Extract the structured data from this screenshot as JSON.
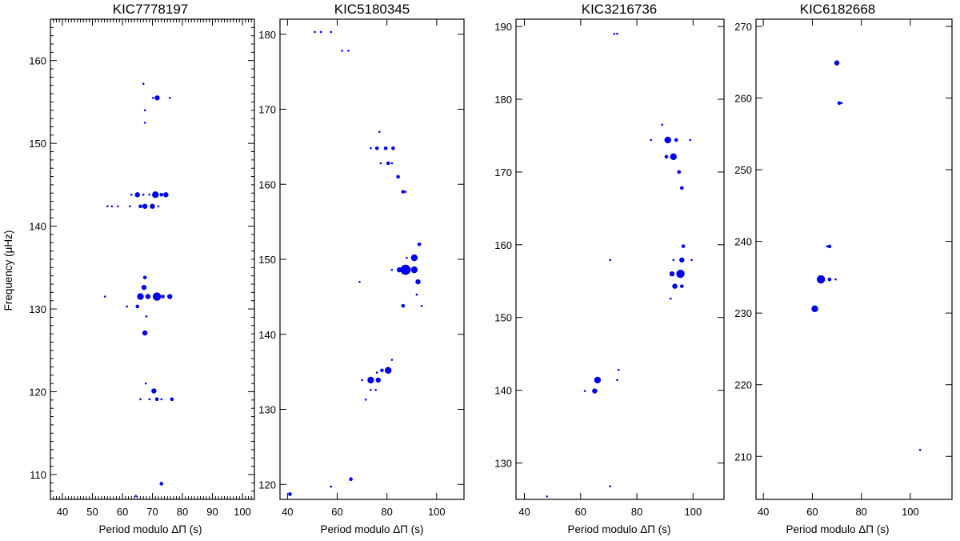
{
  "chart_data": [
    {
      "type": "scatter",
      "title": "KIC7778197",
      "xlabel": "Period modulo ΔΠ (s)",
      "ylabel": "Frequency (μHz)",
      "xlim": [
        36,
        104
      ],
      "ylim": [
        107,
        165
      ],
      "xticks": [
        40,
        50,
        60,
        70,
        80,
        90,
        100
      ],
      "yticks": [
        110,
        120,
        130,
        140,
        150,
        160
      ],
      "points": [
        [
          67.0,
          157.2,
          1
        ],
        [
          71.6,
          155.5,
          3
        ],
        [
          70.2,
          155.5,
          1
        ],
        [
          75.8,
          155.5,
          1
        ],
        [
          67.5,
          154.0,
          1
        ],
        [
          67.5,
          152.5,
          1
        ],
        [
          65.0,
          143.8,
          3
        ],
        [
          63.0,
          143.8,
          1
        ],
        [
          67.0,
          143.8,
          1
        ],
        [
          71.0,
          143.8,
          4
        ],
        [
          73.0,
          143.8,
          2
        ],
        [
          74.5,
          143.8,
          3
        ],
        [
          69.0,
          143.8,
          1
        ],
        [
          55.0,
          142.4,
          1
        ],
        [
          56.5,
          142.4,
          1
        ],
        [
          58.5,
          142.4,
          1
        ],
        [
          62.5,
          142.4,
          1
        ],
        [
          66.0,
          142.4,
          2
        ],
        [
          67.5,
          142.4,
          3
        ],
        [
          70.0,
          142.4,
          3
        ],
        [
          72.0,
          142.4,
          1
        ],
        [
          67.5,
          133.8,
          2
        ],
        [
          67.2,
          132.6,
          3
        ],
        [
          66.0,
          131.5,
          4
        ],
        [
          68.5,
          131.5,
          3
        ],
        [
          71.5,
          131.5,
          5
        ],
        [
          73.5,
          131.5,
          2
        ],
        [
          75.8,
          131.5,
          3
        ],
        [
          54.2,
          131.5,
          1
        ],
        [
          61.5,
          130.3,
          1
        ],
        [
          65.0,
          130.3,
          2
        ],
        [
          68.0,
          129.1,
          1
        ],
        [
          67.5,
          127.1,
          3
        ],
        [
          67.8,
          121.0,
          1
        ],
        [
          70.5,
          120.1,
          3
        ],
        [
          71.5,
          119.1,
          2
        ],
        [
          66.0,
          119.1,
          1
        ],
        [
          69.0,
          119.1,
          1
        ],
        [
          73.0,
          119.1,
          1
        ],
        [
          76.5,
          119.1,
          2
        ],
        [
          73.0,
          108.9,
          2
        ],
        [
          64.5,
          107.4,
          1
        ]
      ]
    },
    {
      "type": "scatter",
      "title": "KIC5180345",
      "xlabel": "Period modulo ΔΠ (s)",
      "ylabel": "",
      "xlim": [
        37,
        111
      ],
      "ylim": [
        118,
        182
      ],
      "xticks": [
        40,
        60,
        80,
        100
      ],
      "yticks": [
        120,
        130,
        140,
        150,
        160,
        170,
        180
      ],
      "points": [
        [
          51.0,
          180.3,
          1
        ],
        [
          53.5,
          180.3,
          1
        ],
        [
          57.5,
          180.3,
          1
        ],
        [
          62.0,
          177.8,
          1
        ],
        [
          64.5,
          177.8,
          1
        ],
        [
          77.0,
          167.0,
          1
        ],
        [
          73.5,
          164.8,
          1
        ],
        [
          76.0,
          164.8,
          2
        ],
        [
          79.5,
          164.8,
          2
        ],
        [
          82.5,
          164.8,
          2
        ],
        [
          77.5,
          162.8,
          1
        ],
        [
          80.5,
          162.8,
          2
        ],
        [
          82.0,
          162.8,
          1
        ],
        [
          84.5,
          161.0,
          2
        ],
        [
          86.5,
          159.0,
          2
        ],
        [
          87.5,
          159.0,
          1
        ],
        [
          93.0,
          152.0,
          2
        ],
        [
          91.0,
          150.2,
          4
        ],
        [
          88.0,
          150.2,
          1
        ],
        [
          82.0,
          148.6,
          1
        ],
        [
          85.0,
          148.6,
          3
        ],
        [
          87.5,
          148.6,
          6
        ],
        [
          91.0,
          148.6,
          4
        ],
        [
          92.5,
          147.0,
          3
        ],
        [
          69.0,
          147.0,
          1
        ],
        [
          92.0,
          145.3,
          1
        ],
        [
          86.5,
          143.8,
          2
        ],
        [
          94.0,
          143.8,
          1
        ],
        [
          82.0,
          136.6,
          1
        ],
        [
          78.0,
          135.2,
          2
        ],
        [
          80.5,
          135.2,
          4
        ],
        [
          76.0,
          134.9,
          1
        ],
        [
          70.0,
          133.9,
          1
        ],
        [
          73.5,
          133.9,
          4
        ],
        [
          76.5,
          133.9,
          3
        ],
        [
          73.5,
          132.6,
          1
        ],
        [
          75.5,
          132.6,
          1
        ],
        [
          71.5,
          131.3,
          1
        ],
        [
          65.5,
          120.7,
          2
        ],
        [
          57.5,
          119.7,
          1
        ],
        [
          41.0,
          118.7,
          2
        ]
      ]
    },
    {
      "type": "scatter",
      "title": "KIC3216736",
      "xlabel": "Period modulo ΔΠ (s)",
      "ylabel": "",
      "xlim": [
        37,
        111
      ],
      "ylim": [
        125,
        191
      ],
      "xticks": [
        40,
        60,
        80,
        100
      ],
      "yticks": [
        130,
        140,
        150,
        160,
        170,
        180,
        190
      ],
      "points": [
        [
          72.0,
          189.0,
          1
        ],
        [
          73.0,
          189.0,
          1
        ],
        [
          89.0,
          176.5,
          1
        ],
        [
          85.0,
          174.4,
          1
        ],
        [
          91.0,
          174.4,
          4
        ],
        [
          94.0,
          174.4,
          2
        ],
        [
          99.0,
          174.4,
          1
        ],
        [
          93.0,
          172.1,
          4
        ],
        [
          90.5,
          172.1,
          2
        ],
        [
          95.0,
          170.0,
          2
        ],
        [
          96.0,
          167.8,
          2
        ],
        [
          96.5,
          159.8,
          2
        ],
        [
          96.0,
          157.9,
          3
        ],
        [
          99.5,
          157.9,
          1
        ],
        [
          93.0,
          157.9,
          1
        ],
        [
          70.5,
          157.9,
          1
        ],
        [
          95.5,
          156.0,
          5
        ],
        [
          92.5,
          156.0,
          3
        ],
        [
          93.5,
          154.3,
          3
        ],
        [
          96.0,
          154.3,
          2
        ],
        [
          92.0,
          152.6,
          1
        ],
        [
          73.5,
          142.8,
          1
        ],
        [
          66.0,
          141.4,
          4
        ],
        [
          73.0,
          141.4,
          1
        ],
        [
          65.0,
          139.9,
          3
        ],
        [
          61.5,
          139.9,
          1
        ],
        [
          70.5,
          126.8,
          1
        ],
        [
          48.0,
          125.4,
          1
        ]
      ]
    },
    {
      "type": "scatter",
      "title": "KIC6182668",
      "xlabel": "Period modulo ΔΠ (s)",
      "ylabel": "",
      "xlim": [
        37,
        117
      ],
      "ylim": [
        204,
        271
      ],
      "xticks": [
        40,
        60,
        80,
        100
      ],
      "yticks": [
        210,
        220,
        230,
        240,
        250,
        260,
        270
      ],
      "points": [
        [
          70.0,
          264.9,
          3
        ],
        [
          71.0,
          259.3,
          2
        ],
        [
          72.0,
          259.3,
          1
        ],
        [
          67.0,
          239.3,
          2
        ],
        [
          66.0,
          239.3,
          1
        ],
        [
          63.5,
          234.7,
          5
        ],
        [
          67.0,
          234.7,
          2
        ],
        [
          69.5,
          234.7,
          1
        ],
        [
          61.0,
          230.6,
          4
        ],
        [
          104.0,
          210.9,
          1
        ]
      ]
    }
  ]
}
